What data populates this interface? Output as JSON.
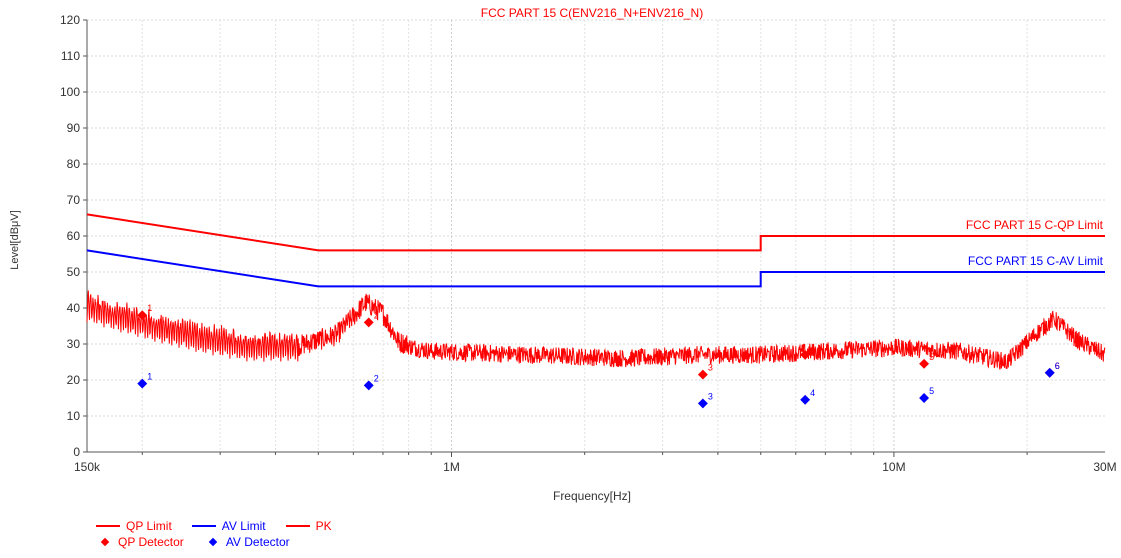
{
  "chart_data": {
    "type": "line",
    "title": "FCC PART 15 C(ENV216_N+ENV216_N)",
    "xlabel": "Frequency[Hz]",
    "ylabel": "Level[dBμV]",
    "xscale": "log",
    "xlim": [
      150000,
      30000000
    ],
    "ylim": [
      0,
      120
    ],
    "grid": true,
    "x_ticks": [
      {
        "value": 150000,
        "label": "150k"
      },
      {
        "value": 1000000,
        "label": "1M"
      },
      {
        "value": 10000000,
        "label": "10M"
      },
      {
        "value": 30000000,
        "label": "30M"
      }
    ],
    "y_ticks": [
      0,
      10,
      20,
      30,
      40,
      50,
      60,
      70,
      80,
      90,
      100,
      110,
      120
    ],
    "series": [
      {
        "name": "QP Limit",
        "color": "#ff0000",
        "points": [
          [
            150000,
            66
          ],
          [
            500000,
            56
          ],
          [
            5000000,
            56
          ],
          [
            5000000,
            60
          ],
          [
            30000000,
            60
          ]
        ],
        "label": "FCC PART 15 C-QP Limit"
      },
      {
        "name": "AV Limit",
        "color": "#0000ff",
        "points": [
          [
            150000,
            56
          ],
          [
            500000,
            46
          ],
          [
            5000000,
            46
          ],
          [
            5000000,
            50
          ],
          [
            30000000,
            50
          ]
        ],
        "label": "FCC PART 15 C-AV Limit"
      },
      {
        "name": "PK",
        "color": "#ff0000",
        "envelope": [
          [
            150000,
            40
          ],
          [
            180000,
            37
          ],
          [
            220000,
            34
          ],
          [
            280000,
            31
          ],
          [
            350000,
            29
          ],
          [
            450000,
            29
          ],
          [
            550000,
            32
          ],
          [
            640000,
            41
          ],
          [
            700000,
            38
          ],
          [
            760000,
            30
          ],
          [
            900000,
            28
          ],
          [
            1500000,
            27
          ],
          [
            2500000,
            26
          ],
          [
            3600000,
            27
          ],
          [
            5000000,
            27
          ],
          [
            7000000,
            28
          ],
          [
            10000000,
            29
          ],
          [
            14000000,
            28
          ],
          [
            18000000,
            25
          ],
          [
            21000000,
            33
          ],
          [
            23000000,
            37
          ],
          [
            26000000,
            31
          ],
          [
            30000000,
            27
          ]
        ]
      }
    ],
    "markers": [
      {
        "series": "QP Detector",
        "color": "#ff0000",
        "points": [
          {
            "n": "1",
            "x": 200000,
            "y": 38
          },
          {
            "n": "2",
            "x": 650000,
            "y": 36
          },
          {
            "n": "3",
            "x": 3700000,
            "y": 21.5
          },
          {
            "n": "4",
            "x": 6300000,
            "y": 27
          },
          {
            "n": "5",
            "x": 11700000,
            "y": 24.5
          },
          {
            "n": "6",
            "x": 22500000,
            "y": 22
          }
        ]
      },
      {
        "series": "AV Detector",
        "color": "#0000ff",
        "points": [
          {
            "n": "1",
            "x": 200000,
            "y": 19
          },
          {
            "n": "2",
            "x": 650000,
            "y": 18.5
          },
          {
            "n": "3",
            "x": 3700000,
            "y": 13.5
          },
          {
            "n": "4",
            "x": 6300000,
            "y": 14.5
          },
          {
            "n": "5",
            "x": 11700000,
            "y": 15
          },
          {
            "n": "6",
            "x": 22500000,
            "y": 22
          }
        ]
      }
    ]
  },
  "legend": {
    "row1": [
      {
        "kind": "line",
        "label": "QP Limit",
        "color": "#ff0000"
      },
      {
        "kind": "line",
        "label": "AV Limit",
        "color": "#0000ff"
      },
      {
        "kind": "line",
        "label": "PK",
        "color": "#ff0000"
      }
    ],
    "row2": [
      {
        "kind": "diamond",
        "label": "QP Detector",
        "color": "#ff0000"
      },
      {
        "kind": "diamond",
        "label": "AV Detector",
        "color": "#0000ff"
      }
    ]
  }
}
